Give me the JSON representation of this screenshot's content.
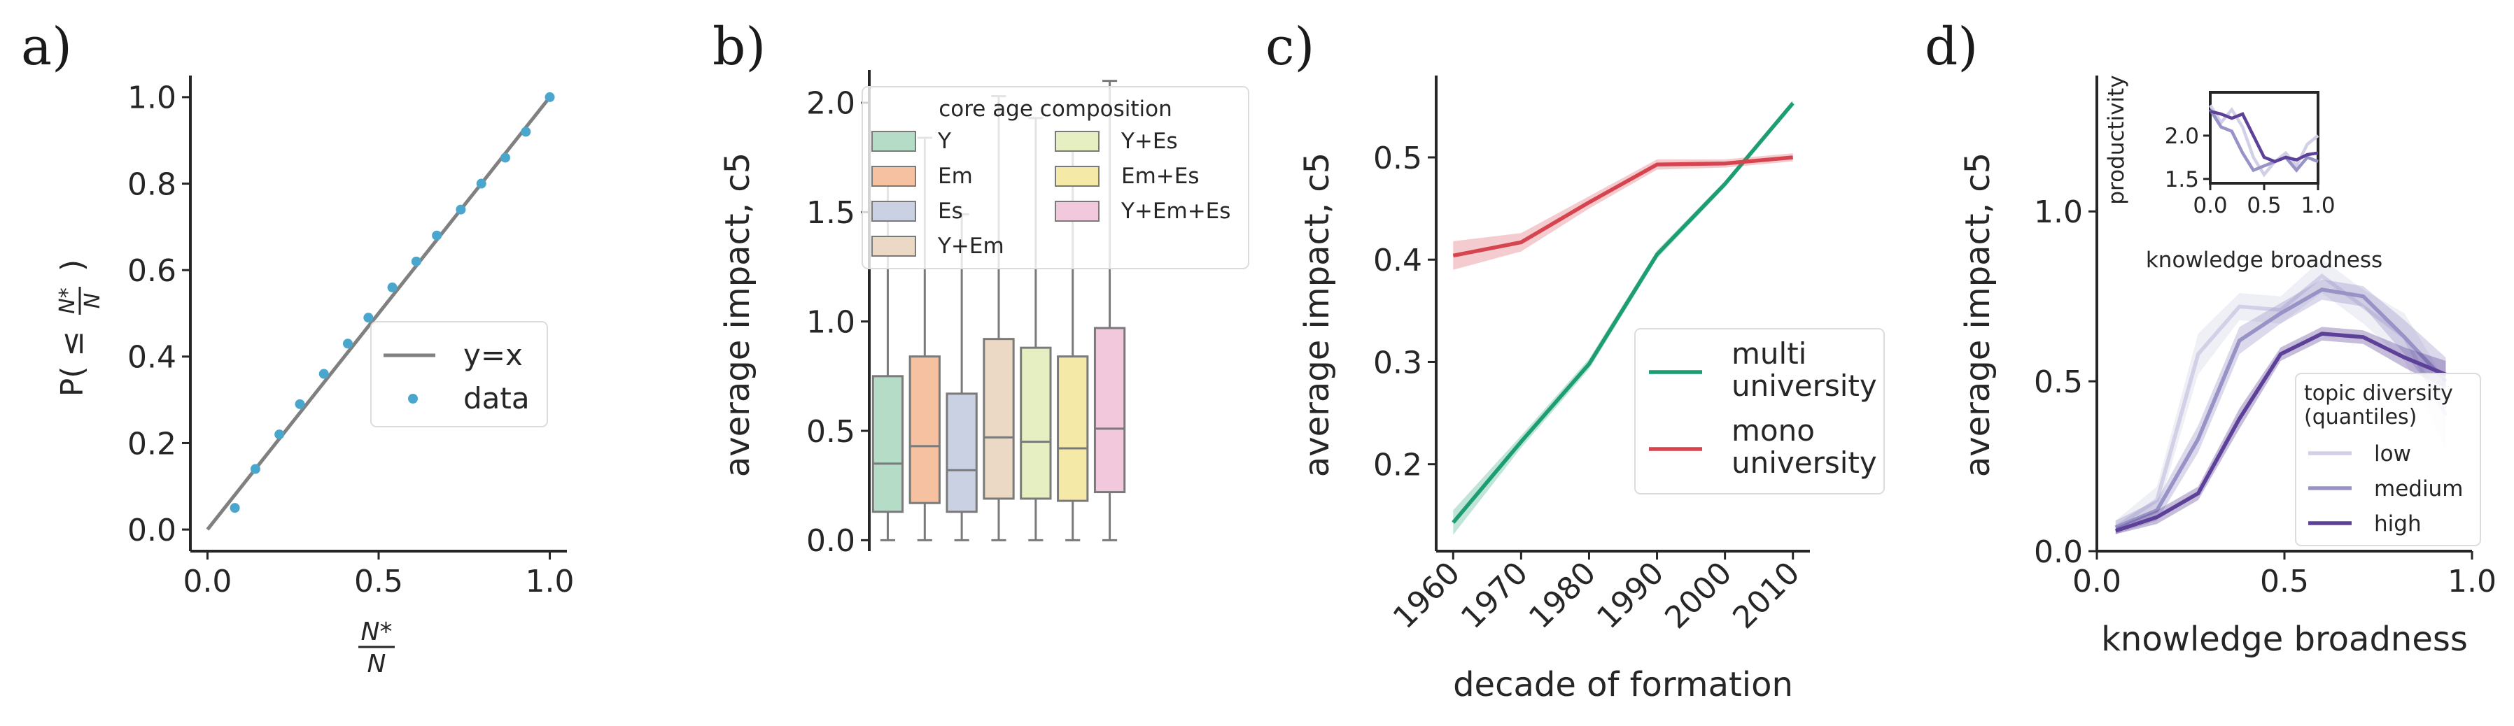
{
  "chart_data": [
    {
      "panel_label": "a)",
      "type": "scatter",
      "xlabel": "N*/N",
      "ylabel": "P(≤ N*/N)",
      "xlim": [
        -0.05,
        1.05
      ],
      "ylim": [
        -0.05,
        1.05
      ],
      "xticks": [
        0.0,
        0.5,
        1.0
      ],
      "xtick_labels": [
        "0.0",
        "0.5",
        "1.0"
      ],
      "yticks": [
        0.0,
        0.2,
        0.4,
        0.6,
        0.8,
        1.0
      ],
      "ytick_labels": [
        "0.0",
        "0.2",
        "0.4",
        "0.6",
        "0.8",
        "1.0"
      ],
      "legend_position": "center-right",
      "series": [
        {
          "name": "y=x",
          "kind": "line",
          "color": "#808080",
          "x": [
            0,
            1
          ],
          "y": [
            0,
            1
          ]
        },
        {
          "name": "data",
          "kind": "scatter",
          "color": "#4aa6cc",
          "x": [
            0.08,
            0.14,
            0.21,
            0.27,
            0.34,
            0.41,
            0.47,
            0.54,
            0.61,
            0.67,
            0.74,
            0.8,
            0.87,
            0.93,
            1.0
          ],
          "y": [
            0.05,
            0.14,
            0.22,
            0.29,
            0.36,
            0.43,
            0.49,
            0.56,
            0.62,
            0.68,
            0.74,
            0.8,
            0.86,
            0.92,
            1.0
          ]
        }
      ]
    },
    {
      "panel_label": "b)",
      "type": "box",
      "ylabel": "average impact, c5",
      "ylim": [
        -0.05,
        2.15
      ],
      "yticks": [
        0.0,
        0.5,
        1.0,
        1.5,
        2.0
      ],
      "ytick_labels": [
        "0.0",
        "0.5",
        "1.0",
        "1.5",
        "2.0"
      ],
      "legend_title": "core age composition",
      "legend_position": "top",
      "categories": [
        "Y",
        "Em",
        "Es",
        "Y+Em",
        "Y+Es",
        "Em+Es",
        "Y+Em+Es"
      ],
      "colors": [
        "#b4dcc6",
        "#f5c1a1",
        "#c9d1e2",
        "#ebd9c6",
        "#e6efc2",
        "#f5e9a8",
        "#f1c8dc"
      ],
      "boxes": [
        {
          "whisker_low": 0.0,
          "q1": 0.13,
          "median": 0.35,
          "q3": 0.75,
          "whisker_high": 1.66
        },
        {
          "whisker_low": 0.0,
          "q1": 0.17,
          "median": 0.43,
          "q3": 0.84,
          "whisker_high": 1.84
        },
        {
          "whisker_low": 0.0,
          "q1": 0.13,
          "median": 0.32,
          "q3": 0.67,
          "whisker_high": 1.49
        },
        {
          "whisker_low": 0.0,
          "q1": 0.19,
          "median": 0.47,
          "q3": 0.92,
          "whisker_high": 2.03
        },
        {
          "whisker_low": 0.0,
          "q1": 0.19,
          "median": 0.45,
          "q3": 0.88,
          "whisker_high": 1.93
        },
        {
          "whisker_low": 0.0,
          "q1": 0.18,
          "median": 0.42,
          "q3": 0.84,
          "whisker_high": 1.83
        },
        {
          "whisker_low": 0.0,
          "q1": 0.22,
          "median": 0.51,
          "q3": 0.97,
          "whisker_high": 2.1
        }
      ]
    },
    {
      "panel_label": "c)",
      "type": "line",
      "xlabel": "decade of formation",
      "ylabel": "average impact, c5",
      "x": [
        1960,
        1970,
        1980,
        1990,
        2000,
        2010
      ],
      "xtick_labels": [
        "1960",
        "1970",
        "1980",
        "1990",
        "2000",
        "2010"
      ],
      "xlim": [
        1957.5,
        2012.5
      ],
      "ylim": [
        0.115,
        0.58
      ],
      "yticks": [
        0.2,
        0.3,
        0.4,
        0.5
      ],
      "ytick_labels": [
        "0.2",
        "0.3",
        "0.4",
        "0.5"
      ],
      "legend_position": "center-right",
      "series": [
        {
          "name": "multi university",
          "color": "#1d9e72",
          "values": [
            0.143,
            0.222,
            0.298,
            0.405,
            0.474,
            0.553
          ],
          "ci": [
            0.012,
            0.006,
            0.005,
            0.004,
            0.003,
            0.003
          ]
        },
        {
          "name": "mono university",
          "color": "#d6454f",
          "values": [
            0.404,
            0.417,
            0.456,
            0.493,
            0.494,
            0.5
          ],
          "ci": [
            0.014,
            0.009,
            0.006,
            0.005,
            0.004,
            0.004
          ]
        }
      ]
    },
    {
      "panel_label": "d)",
      "type": "line",
      "xlabel": "knowledge broadness",
      "ylabel": "average impact, c5",
      "xlim": [
        0.0,
        1.0
      ],
      "ylim": [
        0.0,
        1.4
      ],
      "xticks": [
        0.0,
        0.5,
        1.0
      ],
      "xtick_labels": [
        "0.0",
        "0.5",
        "1.0"
      ],
      "yticks": [
        0.0,
        0.5,
        1.0
      ],
      "ytick_labels": [
        "0.0",
        "0.5",
        "1.0"
      ],
      "legend_title": "topic diversity (quantiles)",
      "legend_position": "lower-right",
      "series": [
        {
          "name": "low",
          "color": "#d2d0e6",
          "x": [
            0.05,
            0.16,
            0.27,
            0.38,
            0.49,
            0.6,
            0.71,
            0.82,
            0.93
          ],
          "values": [
            0.07,
            0.15,
            0.58,
            0.72,
            0.71,
            0.81,
            0.72,
            0.63,
            0.4
          ],
          "ci": [
            0.02,
            0.04,
            0.06,
            0.04,
            0.04,
            0.05,
            0.05,
            0.07,
            0.1
          ]
        },
        {
          "name": "medium",
          "color": "#9893c6",
          "x": [
            0.05,
            0.16,
            0.27,
            0.38,
            0.49,
            0.6,
            0.71,
            0.82,
            0.93
          ],
          "values": [
            0.07,
            0.12,
            0.33,
            0.62,
            0.7,
            0.77,
            0.75,
            0.63,
            0.5
          ],
          "ci": [
            0.02,
            0.03,
            0.04,
            0.04,
            0.03,
            0.03,
            0.03,
            0.05,
            0.07
          ]
        },
        {
          "name": "high",
          "color": "#5d4198",
          "x": [
            0.05,
            0.16,
            0.27,
            0.38,
            0.49,
            0.6,
            0.71,
            0.82,
            0.93
          ],
          "values": [
            0.06,
            0.1,
            0.17,
            0.39,
            0.58,
            0.64,
            0.63,
            0.57,
            0.52
          ],
          "ci": [
            0.01,
            0.02,
            0.02,
            0.03,
            0.02,
            0.02,
            0.02,
            0.03,
            0.04
          ]
        }
      ],
      "inset": {
        "xlabel": "knowledge broadness",
        "ylabel": "productivity",
        "xlim": [
          0.0,
          1.0
        ],
        "ylim": [
          1.45,
          2.5
        ],
        "xticks": [
          0.0,
          0.5,
          1.0
        ],
        "xtick_labels": [
          "0.0",
          "0.5",
          "1.0"
        ],
        "yticks": [
          1.5,
          2.0
        ],
        "ytick_labels": [
          "1.5",
          "2.0"
        ],
        "x": [
          0.0,
          0.1,
          0.2,
          0.3,
          0.4,
          0.5,
          0.6,
          0.7,
          0.8,
          0.9,
          1.0
        ],
        "series": [
          {
            "name": "low",
            "color": "#d2d0e6",
            "values": [
              2.35,
              2.15,
              2.3,
              2.1,
              1.75,
              1.55,
              1.7,
              1.8,
              1.65,
              1.9,
              2.0
            ]
          },
          {
            "name": "medium",
            "color": "#9893c6",
            "values": [
              2.3,
              2.1,
              2.05,
              1.8,
              1.6,
              1.65,
              1.7,
              1.75,
              1.6,
              1.75,
              1.7
            ]
          },
          {
            "name": "high",
            "color": "#5d4198",
            "values": [
              2.28,
              2.25,
              2.2,
              2.25,
              2.0,
              1.75,
              1.7,
              1.75,
              1.72,
              1.78,
              1.8
            ]
          }
        ]
      }
    }
  ]
}
